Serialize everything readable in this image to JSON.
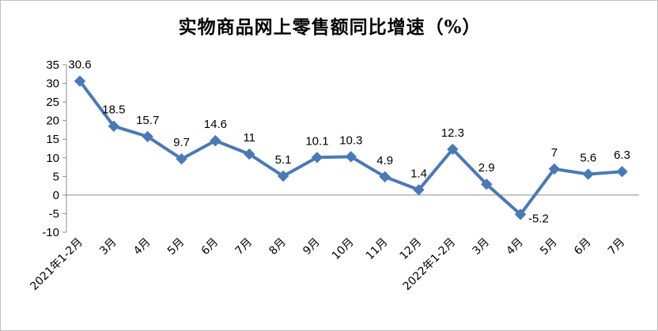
{
  "chart_data": {
    "type": "line",
    "title": "实物商品网上零售额同比增速（%）",
    "xlabel": "",
    "ylabel": "",
    "categories": [
      "2021年1-2月",
      "3月",
      "4月",
      "5月",
      "6月",
      "7月",
      "8月",
      "9月",
      "10月",
      "11月",
      "12月",
      "2022年1-2月",
      "3月",
      "4月",
      "5月",
      "6月",
      "7月"
    ],
    "series": [
      {
        "values": [
          30.6,
          18.5,
          15.7,
          9.7,
          14.6,
          11,
          5.1,
          10.1,
          10.3,
          4.9,
          1.4,
          12.3,
          2.9,
          -5.2,
          7,
          5.6,
          6.3
        ],
        "labels": [
          "30.6",
          "18.5",
          "15.7",
          "9.7",
          "14.6",
          "11",
          "5.1",
          "10.1",
          "10.3",
          "4.9",
          "1.4",
          "12.3",
          "2.9",
          "-5.2",
          "7",
          "5.6",
          "6.3"
        ],
        "color": "#4a7ab5"
      }
    ],
    "ylim": [
      -10,
      35
    ],
    "yticks": [
      -10,
      -5,
      0,
      5,
      10,
      15,
      20,
      25,
      30,
      35
    ],
    "grid": false,
    "legend": "none"
  }
}
